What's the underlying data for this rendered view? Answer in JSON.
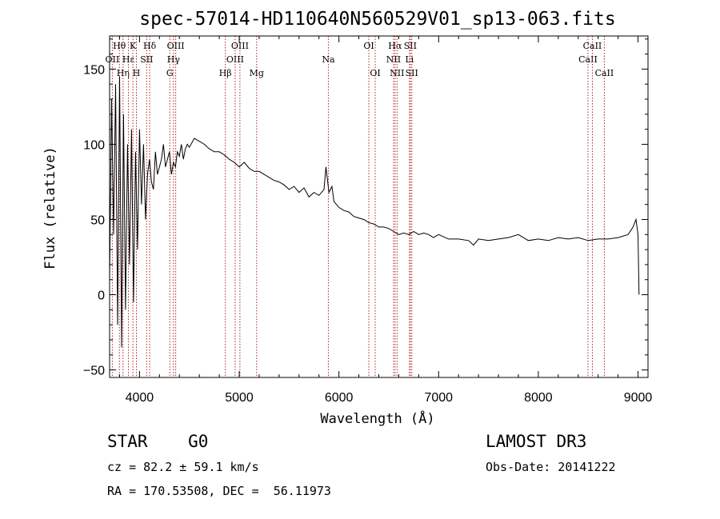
{
  "chart_data": {
    "type": "line",
    "title": "spec-57014-HD110640N560529V01_sp13-063.fits",
    "xlabel": "Wavelength (Å)",
    "ylabel": "Flux (relative)",
    "xlim": [
      3700,
      9100
    ],
    "ylim": [
      -55,
      172
    ],
    "xticks": [
      4000,
      5000,
      6000,
      7000,
      8000,
      9000
    ],
    "yticks": [
      -50,
      0,
      50,
      100,
      150
    ],
    "series": [
      {
        "name": "flux",
        "x": [
          3700,
          3720,
          3740,
          3760,
          3780,
          3800,
          3820,
          3840,
          3860,
          3880,
          3900,
          3920,
          3940,
          3960,
          3980,
          4000,
          4020,
          4040,
          4060,
          4080,
          4100,
          4120,
          4140,
          4160,
          4180,
          4200,
          4220,
          4240,
          4260,
          4280,
          4300,
          4320,
          4340,
          4360,
          4380,
          4400,
          4420,
          4440,
          4460,
          4480,
          4500,
          4550,
          4600,
          4650,
          4700,
          4750,
          4800,
          4850,
          4900,
          4950,
          5000,
          5050,
          5100,
          5150,
          5200,
          5250,
          5300,
          5350,
          5400,
          5450,
          5500,
          5550,
          5600,
          5650,
          5700,
          5750,
          5800,
          5850,
          5870,
          5900,
          5930,
          5950,
          6000,
          6050,
          6100,
          6150,
          6200,
          6250,
          6300,
          6350,
          6400,
          6450,
          6500,
          6550,
          6600,
          6650,
          6700,
          6750,
          6800,
          6850,
          6900,
          6950,
          7000,
          7100,
          7200,
          7300,
          7350,
          7400,
          7500,
          7600,
          7700,
          7800,
          7900,
          8000,
          8100,
          8200,
          8300,
          8400,
          8500,
          8600,
          8700,
          8800,
          8900,
          8950,
          8980,
          9000,
          9010
        ],
        "y": [
          10,
          130,
          40,
          140,
          -20,
          145,
          -35,
          120,
          -10,
          100,
          20,
          110,
          -5,
          95,
          30,
          110,
          60,
          100,
          50,
          80,
          90,
          75,
          70,
          95,
          80,
          85,
          90,
          100,
          85,
          90,
          95,
          80,
          88,
          85,
          95,
          92,
          100,
          90,
          97,
          100,
          98,
          104,
          102,
          100,
          97,
          95,
          95,
          93,
          90,
          88,
          85,
          88,
          84,
          82,
          82,
          80,
          78,
          76,
          75,
          73,
          70,
          72,
          68,
          71,
          65,
          68,
          66,
          70,
          85,
          68,
          72,
          62,
          58,
          56,
          55,
          52,
          51,
          50,
          48,
          47,
          45,
          45,
          44,
          42,
          40,
          41,
          40,
          42,
          40,
          41,
          40,
          38,
          40,
          37,
          37,
          36,
          33,
          37,
          36,
          37,
          38,
          40,
          36,
          37,
          36,
          38,
          37,
          38,
          36,
          37,
          37,
          38,
          40,
          45,
          50,
          40,
          0
        ]
      }
    ],
    "line_markers": [
      {
        "label": "OII",
        "x": 3727,
        "row": 2
      },
      {
        "label": "Hθ",
        "x": 3798,
        "row": 1
      },
      {
        "label": "Hη",
        "x": 3835,
        "row": 3
      },
      {
        "label": "Hε",
        "x": 3889,
        "row": 2
      },
      {
        "label": "K",
        "x": 3934,
        "row": 1
      },
      {
        "label": "H",
        "x": 3969,
        "row": 3
      },
      {
        "label": "SII",
        "x": 4072,
        "row": 2
      },
      {
        "label": "Hδ",
        "x": 4102,
        "row": 1
      },
      {
        "label": "G",
        "x": 4304,
        "row": 3
      },
      {
        "label": "Hγ",
        "x": 4341,
        "row": 2
      },
      {
        "label": "OIII",
        "x": 4363,
        "row": 1
      },
      {
        "label": "Hβ",
        "x": 4861,
        "row": 3
      },
      {
        "label": "OIII",
        "x": 4959,
        "row": 2
      },
      {
        "label": "OIII",
        "x": 5007,
        "row": 1
      },
      {
        "label": "Mg",
        "x": 5175,
        "row": 3
      },
      {
        "label": "Na",
        "x": 5894,
        "row": 2
      },
      {
        "label": "OI",
        "x": 6300,
        "row": 1
      },
      {
        "label": "OI",
        "x": 6364,
        "row": 3
      },
      {
        "label": "NII",
        "x": 6548,
        "row": 2
      },
      {
        "label": "Hα",
        "x": 6563,
        "row": 1
      },
      {
        "label": "NII",
        "x": 6583,
        "row": 3
      },
      {
        "label": "Li",
        "x": 6708,
        "row": 2
      },
      {
        "label": "SII",
        "x": 6716,
        "row": 1
      },
      {
        "label": "SII",
        "x": 6731,
        "row": 3
      },
      {
        "label": "CaII",
        "x": 8498,
        "row": 2
      },
      {
        "label": "CaII",
        "x": 8542,
        "row": 1
      },
      {
        "label": "CaII",
        "x": 8662,
        "row": 3
      }
    ],
    "marker_color": "#b22222"
  },
  "info": {
    "class_line": "STAR    G0",
    "survey": "LAMOST DR3",
    "cz": "cz = 82.2 ± 59.1 km/s",
    "obs_date": "Obs-Date: 20141222",
    "coords": "RA = 170.53508, DEC =  56.11973"
  }
}
